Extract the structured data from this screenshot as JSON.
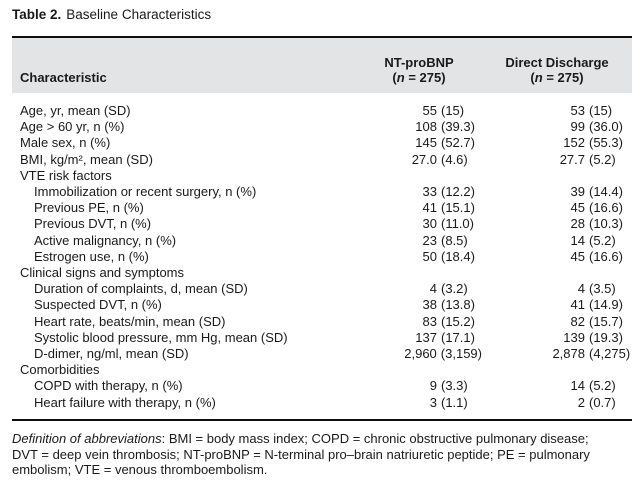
{
  "title": {
    "label": "Table 2.",
    "text": "Baseline Characteristics"
  },
  "table": {
    "header": {
      "characteristic": "Characteristic",
      "columns": [
        {
          "name": "NT-proBNP",
          "count_open": "(",
          "count_var": "n",
          "count_rest": " = 275)"
        },
        {
          "name": "Direct Discharge",
          "count_open": "(",
          "count_var": "n",
          "count_rest": " = 275)"
        }
      ]
    },
    "rows": [
      {
        "type": "data",
        "indent": 0,
        "label": "Age, yr, mean (SD)",
        "c1_val": "55",
        "c1_par": "(15)",
        "c2_val": "53",
        "c2_par": "(15)"
      },
      {
        "type": "data",
        "indent": 0,
        "label": "Age > 60 yr, n (%)",
        "c1_val": "108",
        "c1_par": "(39.3)",
        "c2_val": "99",
        "c2_par": "(36.0)"
      },
      {
        "type": "data",
        "indent": 0,
        "label": "Male sex, n (%)",
        "c1_val": "145",
        "c1_par": "(52.7)",
        "c2_val": "152",
        "c2_par": "(55.3)"
      },
      {
        "type": "data",
        "indent": 0,
        "label": "BMI, kg/m², mean (SD)",
        "c1_val": "27.0",
        "c1_par": "(4.6)",
        "c2_val": "27.7",
        "c2_par": "(5.2)"
      },
      {
        "type": "section",
        "indent": 0,
        "label": "VTE risk factors"
      },
      {
        "type": "data",
        "indent": 1,
        "label": "Immobilization or recent surgery, n (%)",
        "c1_val": "33",
        "c1_par": "(12.2)",
        "c2_val": "39",
        "c2_par": "(14.4)"
      },
      {
        "type": "data",
        "indent": 1,
        "label": "Previous PE, n (%)",
        "c1_val": "41",
        "c1_par": "(15.1)",
        "c2_val": "45",
        "c2_par": "(16.6)"
      },
      {
        "type": "data",
        "indent": 1,
        "label": "Previous DVT, n (%)",
        "c1_val": "30",
        "c1_par": "(11.0)",
        "c2_val": "28",
        "c2_par": "(10.3)"
      },
      {
        "type": "data",
        "indent": 1,
        "label": "Active malignancy, n (%)",
        "c1_val": "23",
        "c1_par": "(8.5)",
        "c2_val": "14",
        "c2_par": "(5.2)"
      },
      {
        "type": "data",
        "indent": 1,
        "label": "Estrogen use, n (%)",
        "c1_val": "50",
        "c1_par": "(18.4)",
        "c2_val": "45",
        "c2_par": "(16.6)"
      },
      {
        "type": "section",
        "indent": 0,
        "label": "Clinical signs and symptoms"
      },
      {
        "type": "data",
        "indent": 1,
        "label": "Duration of complaints, d, mean (SD)",
        "c1_val": "4",
        "c1_par": "(3.2)",
        "c2_val": "4",
        "c2_par": "(3.5)"
      },
      {
        "type": "data",
        "indent": 1,
        "label": "Suspected DVT, n (%)",
        "c1_val": "38",
        "c1_par": "(13.8)",
        "c2_val": "41",
        "c2_par": "(14.9)"
      },
      {
        "type": "data",
        "indent": 1,
        "label": "Heart rate, beats/min, mean (SD)",
        "c1_val": "83",
        "c1_par": "(15.2)",
        "c2_val": "82",
        "c2_par": "(15.7)"
      },
      {
        "type": "data",
        "indent": 1,
        "label": "Systolic blood pressure, mm Hg, mean (SD)",
        "c1_val": "137",
        "c1_par": "(17.1)",
        "c2_val": "139",
        "c2_par": "(19.3)"
      },
      {
        "type": "data",
        "indent": 1,
        "label": "D-dimer, ng/ml, mean (SD)",
        "c1_val": "2,960",
        "c1_par": "(3,159)",
        "c2_val": "2,878",
        "c2_par": "(4,275)"
      },
      {
        "type": "section",
        "indent": 0,
        "label": "Comorbidities"
      },
      {
        "type": "data",
        "indent": 1,
        "label": "COPD with therapy, n (%)",
        "c1_val": "9",
        "c1_par": "(3.3)",
        "c2_val": "14",
        "c2_par": "(5.2)"
      },
      {
        "type": "data",
        "indent": 1,
        "label": "Heart failure with therapy, n (%)",
        "c1_val": "3",
        "c1_par": "(1.1)",
        "c2_val": "2",
        "c2_par": "(0.7)"
      }
    ]
  },
  "footnote": {
    "lead": "Definition of abbreviations",
    "rest": ": BMI = body mass index; COPD = chronic obstructive pulmonary disease; DVT = deep vein thrombosis; NT-proBNP = N-terminal pro–brain natriuretic peptide; PE = pulmonary embolism; VTE = venous thromboembolism."
  },
  "colors": {
    "header_band": "#e3e4e6",
    "rule": "#0e0e0e",
    "text": "#1a1a1a"
  }
}
